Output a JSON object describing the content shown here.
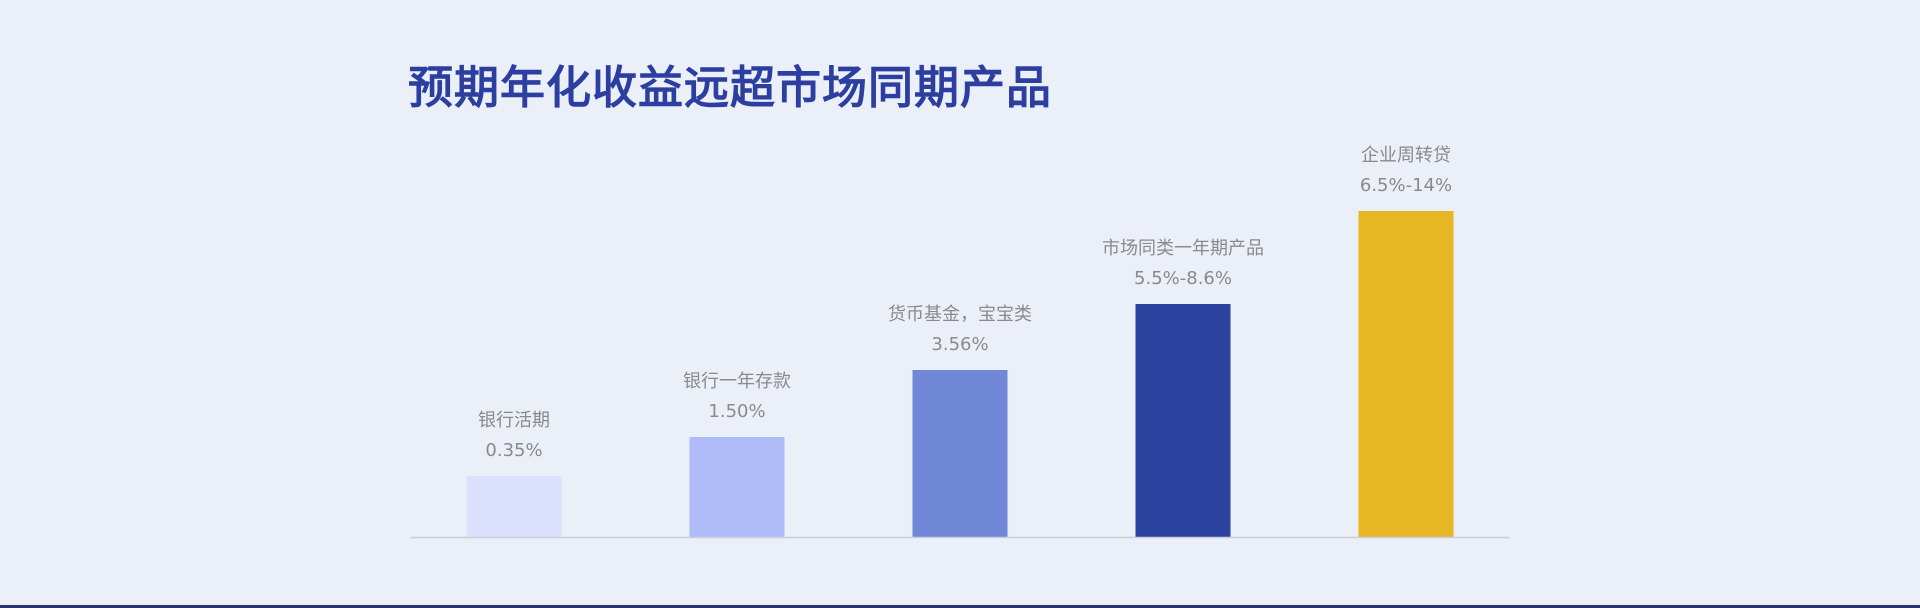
{
  "page": {
    "title": "预期年化收益远超市场同期产品"
  },
  "chart_data": {
    "type": "bar",
    "title": "预期年化收益远超市场同期产品",
    "categories": [
      "银行活期",
      "银行一年存款",
      "货币基金，宝宝类",
      "市场同类一年期产品",
      "企业周转贷"
    ],
    "value_labels": [
      "0.35%",
      "1.50%",
      "3.56%",
      "5.5%-8.6%",
      "6.5%-14%"
    ],
    "values": [
      0.35,
      1.5,
      3.56,
      8.6,
      14
    ],
    "ylim": [
      0,
      14
    ],
    "grid": false,
    "legend": "none",
    "colors": [
      "#dbe0fd",
      "#afbcf7",
      "#7087d8",
      "#2c43a0",
      "#e7b623"
    ],
    "axis_color": "#c9cde0",
    "label_color": "#8a8a8a"
  }
}
